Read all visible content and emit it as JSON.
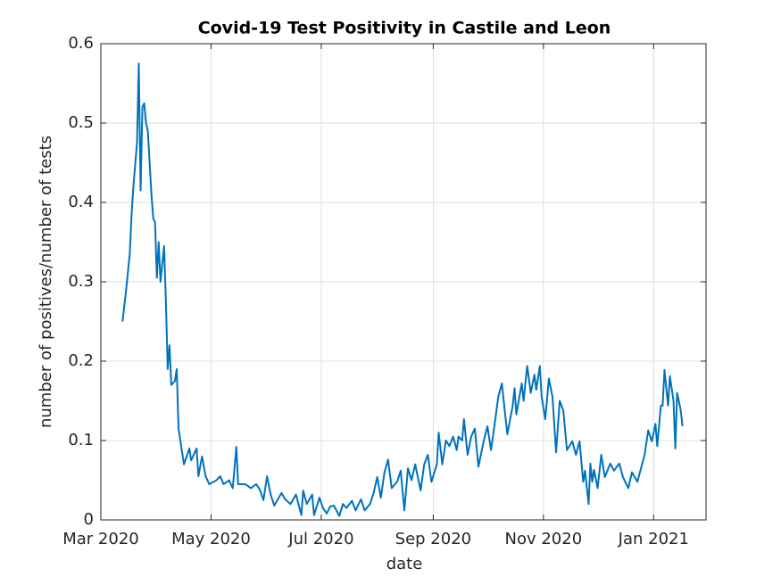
{
  "chart_data": {
    "type": "line",
    "title": "Covid-19 Test Positivity in Castile and Leon",
    "xlabel": "date",
    "ylabel": "number of positives/number of tests",
    "x": [
      "2020-03-13",
      "2020-03-15",
      "2020-03-17",
      "2020-03-18",
      "2020-03-19",
      "2020-03-21",
      "2020-03-22",
      "2020-03-23",
      "2020-03-24",
      "2020-03-25",
      "2020-03-26",
      "2020-03-27",
      "2020-03-29",
      "2020-03-30",
      "2020-03-31",
      "2020-04-01",
      "2020-04-02",
      "2020-04-03",
      "2020-04-05",
      "2020-04-06",
      "2020-04-07",
      "2020-04-08",
      "2020-04-09",
      "2020-04-11",
      "2020-04-12",
      "2020-04-13",
      "2020-04-14",
      "2020-04-16",
      "2020-04-19",
      "2020-04-20",
      "2020-04-23",
      "2020-04-24",
      "2020-04-26",
      "2020-04-28",
      "2020-04-30",
      "2020-05-04",
      "2020-05-06",
      "2020-05-08",
      "2020-05-11",
      "2020-05-13",
      "2020-05-15",
      "2020-05-16",
      "2020-05-20",
      "2020-05-23",
      "2020-05-26",
      "2020-05-28",
      "2020-05-30",
      "2020-06-01",
      "2020-06-03",
      "2020-06-05",
      "2020-06-09",
      "2020-06-11",
      "2020-06-14",
      "2020-06-17",
      "2020-06-20",
      "2020-06-21",
      "2020-06-23",
      "2020-06-26",
      "2020-06-27",
      "2020-06-30",
      "2020-07-02",
      "2020-07-04",
      "2020-07-06",
      "2020-07-08",
      "2020-07-11",
      "2020-07-13",
      "2020-07-15",
      "2020-07-18",
      "2020-07-20",
      "2020-07-23",
      "2020-07-25",
      "2020-07-28",
      "2020-07-30",
      "2020-08-01",
      "2020-08-03",
      "2020-08-05",
      "2020-08-07",
      "2020-08-09",
      "2020-08-12",
      "2020-08-14",
      "2020-08-16",
      "2020-08-18",
      "2020-08-20",
      "2020-08-22",
      "2020-08-25",
      "2020-08-27",
      "2020-08-29",
      "2020-08-31",
      "2020-09-03",
      "2020-09-04",
      "2020-09-06",
      "2020-09-08",
      "2020-09-10",
      "2020-09-12",
      "2020-09-14",
      "2020-09-15",
      "2020-09-17",
      "2020-09-18",
      "2020-09-20",
      "2020-09-22",
      "2020-09-24",
      "2020-09-26",
      "2020-09-29",
      "2020-10-01",
      "2020-10-03",
      "2020-10-05",
      "2020-10-07",
      "2020-10-09",
      "2020-10-10",
      "2020-10-12",
      "2020-10-15",
      "2020-10-16",
      "2020-10-17",
      "2020-10-20",
      "2020-10-21",
      "2020-10-23",
      "2020-10-25",
      "2020-10-27",
      "2020-10-28",
      "2020-10-30",
      "2020-10-31",
      "2020-11-02",
      "2020-11-04",
      "2020-11-06",
      "2020-11-08",
      "2020-11-10",
      "2020-11-12",
      "2020-11-14",
      "2020-11-17",
      "2020-11-19",
      "2020-11-21",
      "2020-11-23",
      "2020-11-24",
      "2020-11-26",
      "2020-11-27",
      "2020-11-28",
      "2020-11-29",
      "2020-12-01",
      "2020-12-03",
      "2020-12-05",
      "2020-12-08",
      "2020-12-10",
      "2020-12-13",
      "2020-12-15",
      "2020-12-18",
      "2020-12-20",
      "2020-12-23",
      "2020-12-25",
      "2020-12-27",
      "2020-12-29",
      "2020-12-31",
      "2021-01-02",
      "2021-01-03",
      "2021-01-05",
      "2021-01-06",
      "2021-01-07",
      "2021-01-09",
      "2021-01-10",
      "2021-01-12",
      "2021-01-13",
      "2021-01-14",
      "2021-01-16",
      "2021-01-17"
    ],
    "series": [
      {
        "color": "#0072bd",
        "values": [
          0.25,
          0.29,
          0.335,
          0.385,
          0.42,
          0.475,
          0.575,
          0.415,
          0.52,
          0.525,
          0.5,
          0.49,
          0.41,
          0.38,
          0.375,
          0.305,
          0.35,
          0.3,
          0.345,
          0.275,
          0.19,
          0.22,
          0.17,
          0.175,
          0.19,
          0.115,
          0.1,
          0.07,
          0.09,
          0.075,
          0.09,
          0.055,
          0.08,
          0.055,
          0.045,
          0.05,
          0.055,
          0.045,
          0.05,
          0.04,
          0.092,
          0.045,
          0.045,
          0.04,
          0.045,
          0.038,
          0.025,
          0.055,
          0.032,
          0.018,
          0.034,
          0.026,
          0.02,
          0.032,
          0.006,
          0.037,
          0.02,
          0.032,
          0.006,
          0.028,
          0.015,
          0.008,
          0.017,
          0.018,
          0.005,
          0.02,
          0.015,
          0.024,
          0.012,
          0.026,
          0.012,
          0.02,
          0.034,
          0.054,
          0.028,
          0.06,
          0.076,
          0.04,
          0.048,
          0.062,
          0.012,
          0.065,
          0.05,
          0.07,
          0.037,
          0.07,
          0.082,
          0.048,
          0.07,
          0.11,
          0.07,
          0.1,
          0.093,
          0.105,
          0.088,
          0.105,
          0.1,
          0.127,
          0.082,
          0.105,
          0.115,
          0.067,
          0.1,
          0.118,
          0.088,
          0.121,
          0.155,
          0.172,
          0.15,
          0.108,
          0.144,
          0.166,
          0.133,
          0.172,
          0.15,
          0.194,
          0.16,
          0.183,
          0.164,
          0.194,
          0.155,
          0.127,
          0.178,
          0.155,
          0.085,
          0.15,
          0.138,
          0.088,
          0.099,
          0.082,
          0.099,
          0.048,
          0.062,
          0.02,
          0.071,
          0.048,
          0.063,
          0.04,
          0.082,
          0.054,
          0.071,
          0.062,
          0.071,
          0.054,
          0.04,
          0.06,
          0.048,
          0.065,
          0.082,
          0.113,
          0.099,
          0.121,
          0.093,
          0.144,
          0.144,
          0.189,
          0.144,
          0.181,
          0.15,
          0.09,
          0.16,
          0.138,
          0.118
        ]
      }
    ],
    "xlim": [
      "2020-03-01",
      "2021-01-30"
    ],
    "xticks": [
      {
        "value": "2020-03-01",
        "label": "Mar 2020"
      },
      {
        "value": "2020-05-01",
        "label": "May 2020"
      },
      {
        "value": "2020-07-01",
        "label": "Jul 2020"
      },
      {
        "value": "2020-09-01",
        "label": "Sep 2020"
      },
      {
        "value": "2020-11-01",
        "label": "Nov 2020"
      },
      {
        "value": "2021-01-01",
        "label": "Jan 2021"
      }
    ],
    "ylim": [
      0,
      0.6
    ],
    "yticks": [
      0,
      0.1,
      0.2,
      0.3,
      0.4,
      0.5,
      0.6
    ],
    "grid": true
  }
}
